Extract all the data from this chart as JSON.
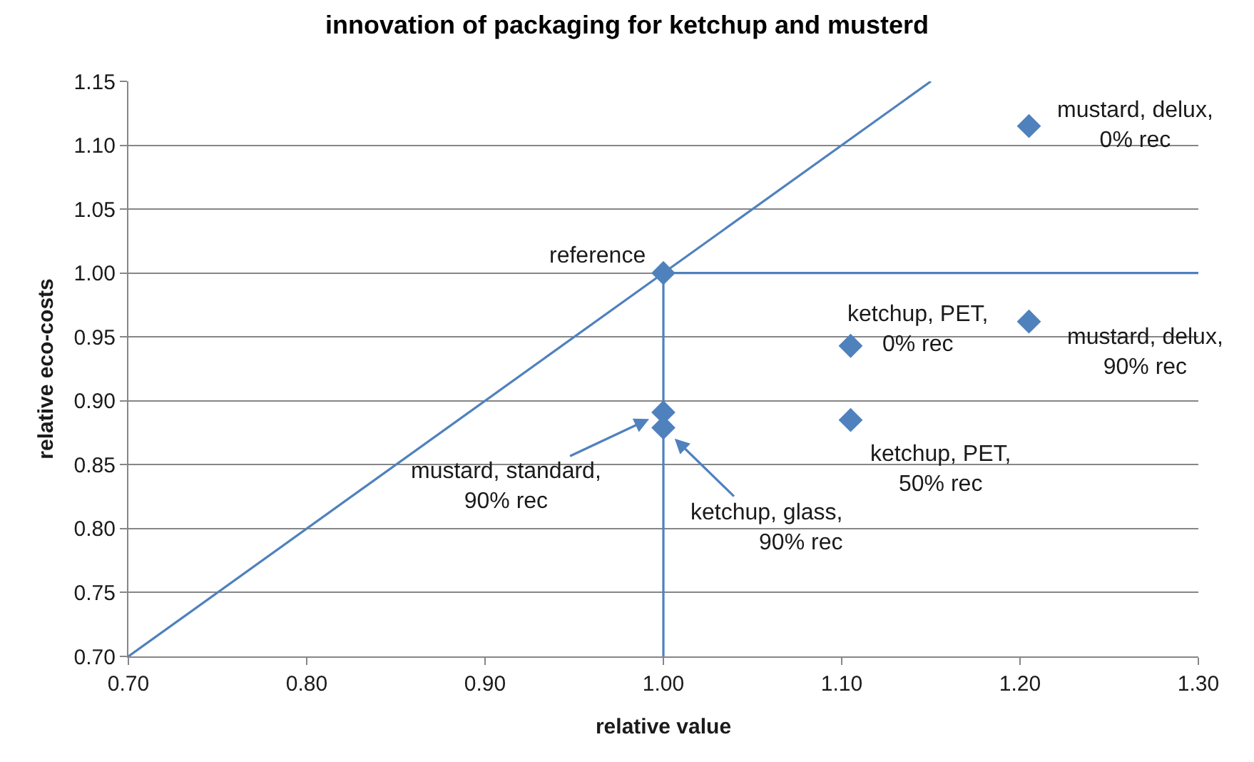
{
  "chart_data": {
    "type": "scatter",
    "title": "innovation of packaging for ketchup and musterd",
    "xlabel": "relative value",
    "ylabel": "relative eco-costs",
    "series": [
      {
        "type": "line",
        "color": "#4f81bd",
        "marker": "none",
        "x": [
          0.7,
          1.15
        ],
        "values": [
          0.7,
          1.15
        ]
      },
      {
        "type": "line",
        "color": "#4f81bd",
        "marker": "none",
        "x": [
          1.3,
          1.0,
          1.0
        ],
        "values": [
          1.0,
          1.0,
          0.7
        ]
      },
      {
        "color": "#4f81bd",
        "x": [
          1.0,
          1.205,
          1.105,
          1.205,
          1.105,
          1.0,
          1.0
        ],
        "values": [
          1.0,
          1.115,
          0.943,
          0.962,
          0.885,
          0.891,
          0.879
        ]
      }
    ],
    "xlim": [
      0.7,
      1.3
    ],
    "xticks": [
      {
        "value": 0.7,
        "label": "0.70"
      },
      {
        "value": 0.8,
        "label": "0.80"
      },
      {
        "value": 0.9,
        "label": "0.90"
      },
      {
        "value": 1.0,
        "label": "1.00"
      },
      {
        "value": 1.1,
        "label": "1.10"
      },
      {
        "value": 1.2,
        "label": "1.20"
      },
      {
        "value": 1.3,
        "label": "1.30"
      }
    ],
    "ylim": [
      0.7,
      1.15
    ],
    "yticks": [
      {
        "value": 0.7,
        "label": "0.70"
      },
      0.75,
      {
        "value": 0.8,
        "label": "0.80"
      },
      0.85,
      {
        "value": 0.9,
        "label": "0.90"
      },
      0.95,
      {
        "value": 1.0,
        "label": "1.00"
      },
      1.05,
      {
        "value": 1.1,
        "label": "1.10"
      },
      1.15
    ],
    "grid": "y",
    "marker": "diamond",
    "line_style": "solid",
    "annotations": [
      {
        "text": "reference",
        "x": 1.0,
        "y": 1.0
      },
      {
        "text": "mustard, delux,\n0% rec",
        "x": 1.205,
        "y": 1.115
      },
      {
        "text": "ketchup, PET,\n0% rec",
        "x": 1.105,
        "y": 0.943
      },
      {
        "text": "mustard, delux,\n90% rec",
        "x": 1.205,
        "y": 0.962
      },
      {
        "text": "ketchup, PET,\n50% rec",
        "x": 1.105,
        "y": 0.885
      },
      {
        "text": "mustard, standard,\n90% rec",
        "x": 1.0,
        "y": 0.891
      },
      {
        "text": "ketchup, glass,\n90% rec",
        "x": 1.0,
        "y": 0.879
      }
    ]
  }
}
